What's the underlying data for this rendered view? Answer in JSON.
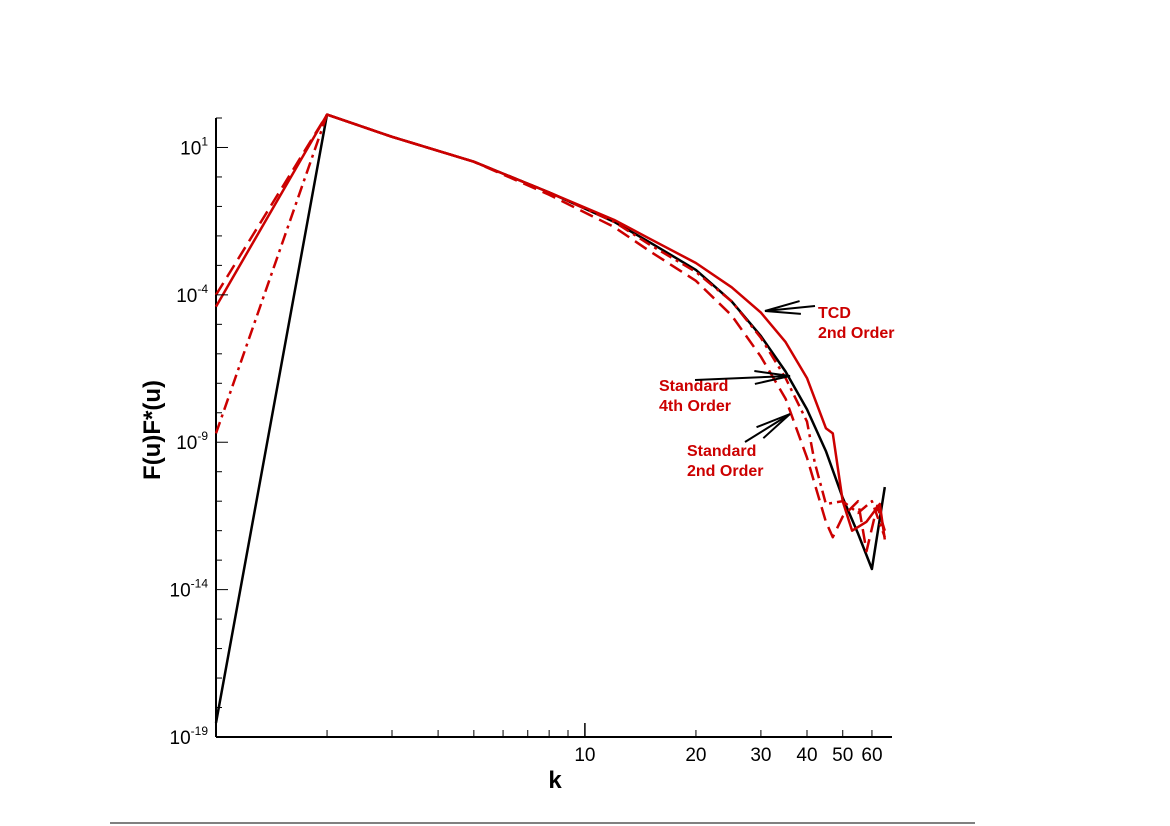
{
  "chart_data": {
    "type": "line",
    "xlabel": "k",
    "ylabel": "F(u)F*(u)",
    "xscale": "log",
    "yscale": "log",
    "xlim": [
      1,
      68
    ],
    "ylim": [
      1e-19,
      100.0
    ],
    "x_ticks_labeled": [
      {
        "value": 10,
        "label": "10"
      },
      {
        "value": 20,
        "label": "20"
      },
      {
        "value": 30,
        "label": "30"
      },
      {
        "value": 40,
        "label": "40"
      },
      {
        "value": 50,
        "label": "50"
      },
      {
        "value": 60,
        "label": "60"
      }
    ],
    "y_ticks": [
      {
        "value": 10.0,
        "base": "10",
        "exp": "1"
      },
      {
        "value": 0.0001,
        "base": "10",
        "exp": "-4"
      },
      {
        "value": 1e-09,
        "base": "10",
        "exp": "-9"
      },
      {
        "value": 1e-14,
        "base": "10",
        "exp": "-14"
      },
      {
        "value": 1e-19,
        "base": "10",
        "exp": "-19"
      }
    ],
    "colors": {
      "black": "#000000",
      "red": "#cc0000"
    },
    "series": [
      {
        "color": "#000000",
        "style": "solid",
        "points": [
          [
            1,
            3e-19
          ],
          [
            2,
            130.0
          ],
          [
            3,
            23.0
          ],
          [
            5,
            3.3
          ],
          [
            8,
            0.3
          ],
          [
            12,
            0.03
          ],
          [
            15,
            0.006
          ],
          [
            20,
            0.0007
          ],
          [
            25,
            6e-05
          ],
          [
            30,
            4e-06
          ],
          [
            35,
            2.5e-07
          ],
          [
            40,
            1.3e-08
          ],
          [
            45,
            5e-10
          ],
          [
            50,
            1.3e-11
          ],
          [
            55,
            8e-13
          ],
          [
            60,
            5e-14
          ],
          [
            65,
            3e-11
          ]
        ]
      },
      {
        "color": "#cc0000",
        "style": "solid",
        "points": [
          [
            1,
            4e-05
          ],
          [
            2,
            130.0
          ],
          [
            3,
            23.0
          ],
          [
            5,
            3.3
          ],
          [
            8,
            0.3
          ],
          [
            12,
            0.035
          ],
          [
            15,
            0.008
          ],
          [
            20,
            0.0012
          ],
          [
            25,
            0.00018
          ],
          [
            30,
            2.5e-05
          ],
          [
            35,
            2.5e-06
          ],
          [
            40,
            1.5e-07
          ],
          [
            45,
            3e-09
          ],
          [
            47,
            2e-09
          ],
          [
            50,
            1e-11
          ],
          [
            53,
            1e-12
          ],
          [
            58,
            2e-12
          ],
          [
            63,
            8e-12
          ],
          [
            65,
            5e-13
          ]
        ]
      },
      {
        "color": "#cc0000",
        "style": "dashdot",
        "points": [
          [
            1,
            2e-09
          ],
          [
            2,
            130.0
          ],
          [
            3,
            23.0
          ],
          [
            5,
            3.3
          ],
          [
            8,
            0.3
          ],
          [
            12,
            0.03
          ],
          [
            15,
            0.005
          ],
          [
            20,
            0.0006
          ],
          [
            25,
            6e-05
          ],
          [
            30,
            3.5e-06
          ],
          [
            35,
            1.5e-07
          ],
          [
            40,
            5e-09
          ],
          [
            42,
            2e-10
          ],
          [
            45,
            8e-12
          ],
          [
            50,
            1e-11
          ],
          [
            55,
            4e-12
          ],
          [
            60,
            1e-11
          ],
          [
            65,
            6e-13
          ]
        ]
      },
      {
        "color": "#cc0000",
        "style": "dashed",
        "points": [
          [
            1,
            0.0001
          ],
          [
            2,
            130.0
          ],
          [
            3,
            23.0
          ],
          [
            5,
            3.3
          ],
          [
            8,
            0.25
          ],
          [
            12,
            0.02
          ],
          [
            15,
            0.003
          ],
          [
            20,
            0.0003
          ],
          [
            25,
            2e-05
          ],
          [
            30,
            8e-07
          ],
          [
            35,
            3e-08
          ],
          [
            40,
            3e-10
          ],
          [
            45,
            2e-12
          ],
          [
            47,
            6e-13
          ],
          [
            50,
            3e-12
          ],
          [
            55,
            1e-11
          ],
          [
            58,
            2e-13
          ],
          [
            62,
            7e-12
          ],
          [
            65,
            1e-12
          ]
        ]
      }
    ],
    "annotations": [
      {
        "lines": [
          "TCD",
          "2nd Order"
        ],
        "color": "#cc0000"
      },
      {
        "lines": [
          "Standard",
          "4th Order"
        ],
        "color": "#cc0000"
      },
      {
        "lines": [
          "Standard",
          "2nd Order"
        ],
        "color": "#cc0000"
      }
    ]
  }
}
